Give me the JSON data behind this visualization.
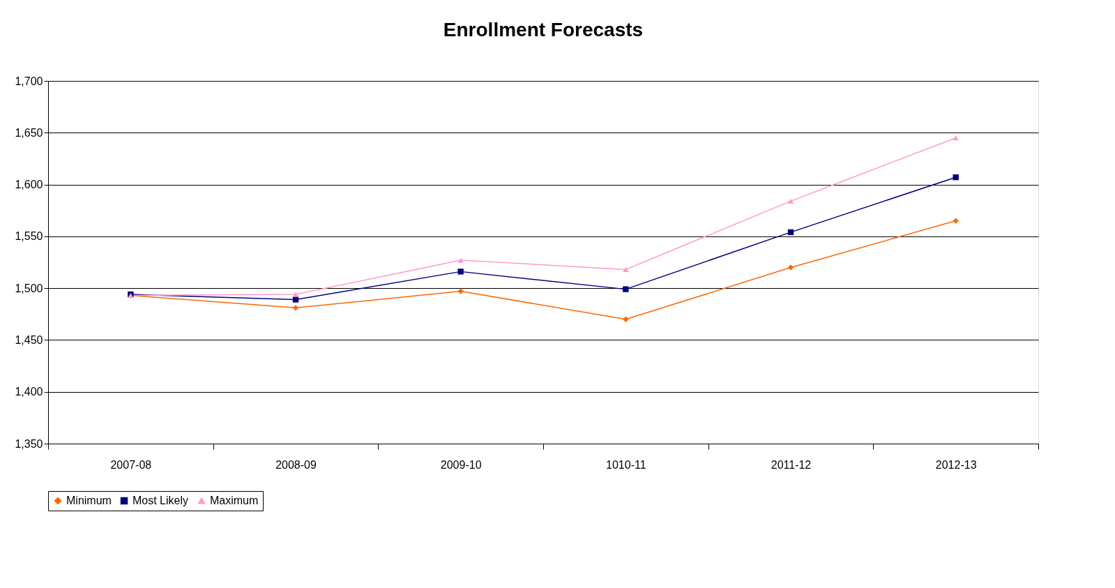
{
  "chart_data": {
    "type": "line",
    "title": "Enrollment Forecasts",
    "categories": [
      "2007-08",
      "2008-09",
      "2009-10",
      "1010-11",
      "2011-12",
      "2012-13"
    ],
    "series": [
      {
        "name": "Minimum",
        "color": "#ff6600",
        "marker": "diamond",
        "values": [
          1493,
          1481,
          1497,
          1470,
          1520,
          1565
        ]
      },
      {
        "name": "Most Likely",
        "color": "#000080",
        "marker": "square",
        "values": [
          1494,
          1489,
          1516,
          1499,
          1554,
          1607
        ]
      },
      {
        "name": "Maximum",
        "color": "#ff99cc",
        "marker": "triangle",
        "values": [
          1493,
          1494,
          1527,
          1518,
          1584,
          1645
        ]
      }
    ],
    "ylim": [
      1350,
      1700
    ],
    "yticks": [
      {
        "value": 1350,
        "label": "1,350"
      },
      {
        "value": 1400,
        "label": "1,400"
      },
      {
        "value": 1450,
        "label": "1,450"
      },
      {
        "value": 1500,
        "label": "1,500"
      },
      {
        "value": 1550,
        "label": "1,550"
      },
      {
        "value": 1600,
        "label": "1,600"
      },
      {
        "value": 1650,
        "label": "1,650"
      },
      {
        "value": 1700,
        "label": "1,700"
      }
    ],
    "grid": "y",
    "legend": "bottom"
  }
}
